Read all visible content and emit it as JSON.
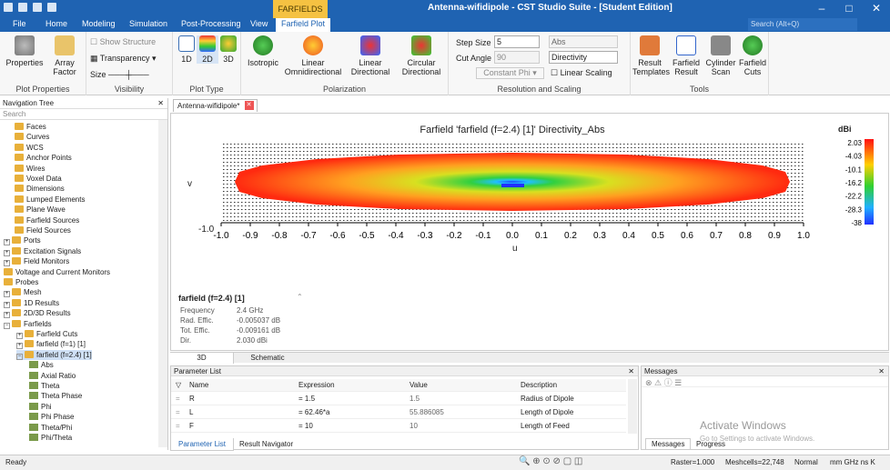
{
  "window": {
    "title": "Antenna-wifidipole - CST Studio Suite - [Student Edition]",
    "context_group": "FARFIELDS"
  },
  "menu": {
    "file": "File",
    "home": "Home",
    "modeling": "Modeling",
    "simulation": "Simulation",
    "postproc": "Post-Processing",
    "view": "View",
    "farfield_plot": "Farfield Plot"
  },
  "search_placeholder": "Search (Alt+Q)",
  "ribbon": {
    "plot_properties": {
      "label": "Plot Properties",
      "properties": "Properties",
      "array_factor": "Array Factor"
    },
    "visibility": {
      "label": "Visibility",
      "show_structure": "Show Structure",
      "transparency": "Transparency",
      "size": "Size"
    },
    "plot_type": {
      "label": "Plot Type",
      "d1": "1D",
      "d2": "2D",
      "d3": "3D"
    },
    "polarization": {
      "label": "Polarization",
      "isotropic": "Isotropic",
      "linear_omni": "Linear Omnidirectional",
      "linear_dir": "Linear Directional",
      "circular_dir": "Circular Directional"
    },
    "resolution": {
      "label": "Resolution and Scaling",
      "step_size_label": "Step Size",
      "step_size": "5",
      "cut_angle_label": "Cut Angle",
      "cut_angle": "90",
      "constant_phi": "Constant Phi",
      "abs": "Abs",
      "directivity": "Directivity",
      "linear_scaling": "Linear Scaling"
    },
    "tools": {
      "label": "Tools",
      "result_templates": "Result Templates",
      "farfield_result": "Farfield Result",
      "cylinder_scan": "Cylinder Scan",
      "farfield_cuts": "Farfield Cuts"
    }
  },
  "nav": {
    "title": "Navigation Tree",
    "search": "Search",
    "items": [
      "Faces",
      "Curves",
      "WCS",
      "Anchor Points",
      "Wires",
      "Voxel Data",
      "Dimensions",
      "Lumped Elements",
      "Plane Wave",
      "Farfield Sources",
      "Field Sources",
      "Ports",
      "Excitation Signals",
      "Field Monitors",
      "Voltage and Current Monitors",
      "Probes",
      "Mesh",
      "1D Results",
      "2D/3D Results",
      "Farfields",
      "Farfield Cuts",
      "farfield (f=1) [1]",
      "farfield (f=2.4) [1]",
      "Abs",
      "Axial Ratio",
      "Theta",
      "Theta Phase",
      "Phi",
      "Phi Phase",
      "Theta/Phi",
      "Phi/Theta"
    ]
  },
  "doc_tab": "Antenna-wifidipole*",
  "plot": {
    "title": "Farfield 'farfield (f=2.4) [1]' Directivity_Abs",
    "unit": "dBi",
    "colorbar": [
      "2.03",
      "-4.03",
      "-10.1",
      "-16.2",
      "-22.2",
      "-28.3",
      "-38"
    ],
    "xlabel": "u",
    "ylabel": "v",
    "xticks": [
      "-1.0",
      "-0.9",
      "-0.8",
      "-0.7",
      "-0.6",
      "-0.5",
      "-0.4",
      "-0.3",
      "-0.2",
      "-0.1",
      "0.0",
      "0.1",
      "0.2",
      "0.3",
      "0.4",
      "0.5",
      "0.6",
      "0.7",
      "0.8",
      "0.9",
      "1.0"
    ],
    "ytick_bottom": "-1.0"
  },
  "info": {
    "name": "farfield (f=2.4) [1]",
    "rows": [
      [
        "Frequency",
        "2.4 GHz"
      ],
      [
        "Rad. Effic.",
        "-0.005037 dB"
      ],
      [
        "Tot. Effic.",
        "-0.009161 dB"
      ],
      [
        "Dir.",
        "2.030 dBi"
      ]
    ]
  },
  "view_tabs": {
    "t3d": "3D",
    "schematic": "Schematic"
  },
  "params": {
    "title": "Parameter List",
    "headers": [
      "Name",
      "Expression",
      "Value",
      "Description"
    ],
    "rows": [
      [
        "R",
        "= 1.5",
        "1.5",
        "Radius of Dipole"
      ],
      [
        "L",
        "= 62.46*a",
        "55.886085",
        "Length of Dipole"
      ],
      [
        "F",
        "= 10",
        "10",
        "Length  of  Feed"
      ]
    ]
  },
  "bottom_tabs": {
    "param_list": "Parameter List",
    "result_nav": "Result Navigator"
  },
  "messages": {
    "title": "Messages",
    "tab_messages": "Messages",
    "tab_progress": "Progress",
    "watermark1": "Activate Windows",
    "watermark2": "Go to Settings to activate Windows."
  },
  "status": {
    "ready": "Ready",
    "raster": "Raster=1.000",
    "meshcells": "Meshcells=22,748",
    "mode": "Normal",
    "units": "mm  GHz  ns  K"
  }
}
